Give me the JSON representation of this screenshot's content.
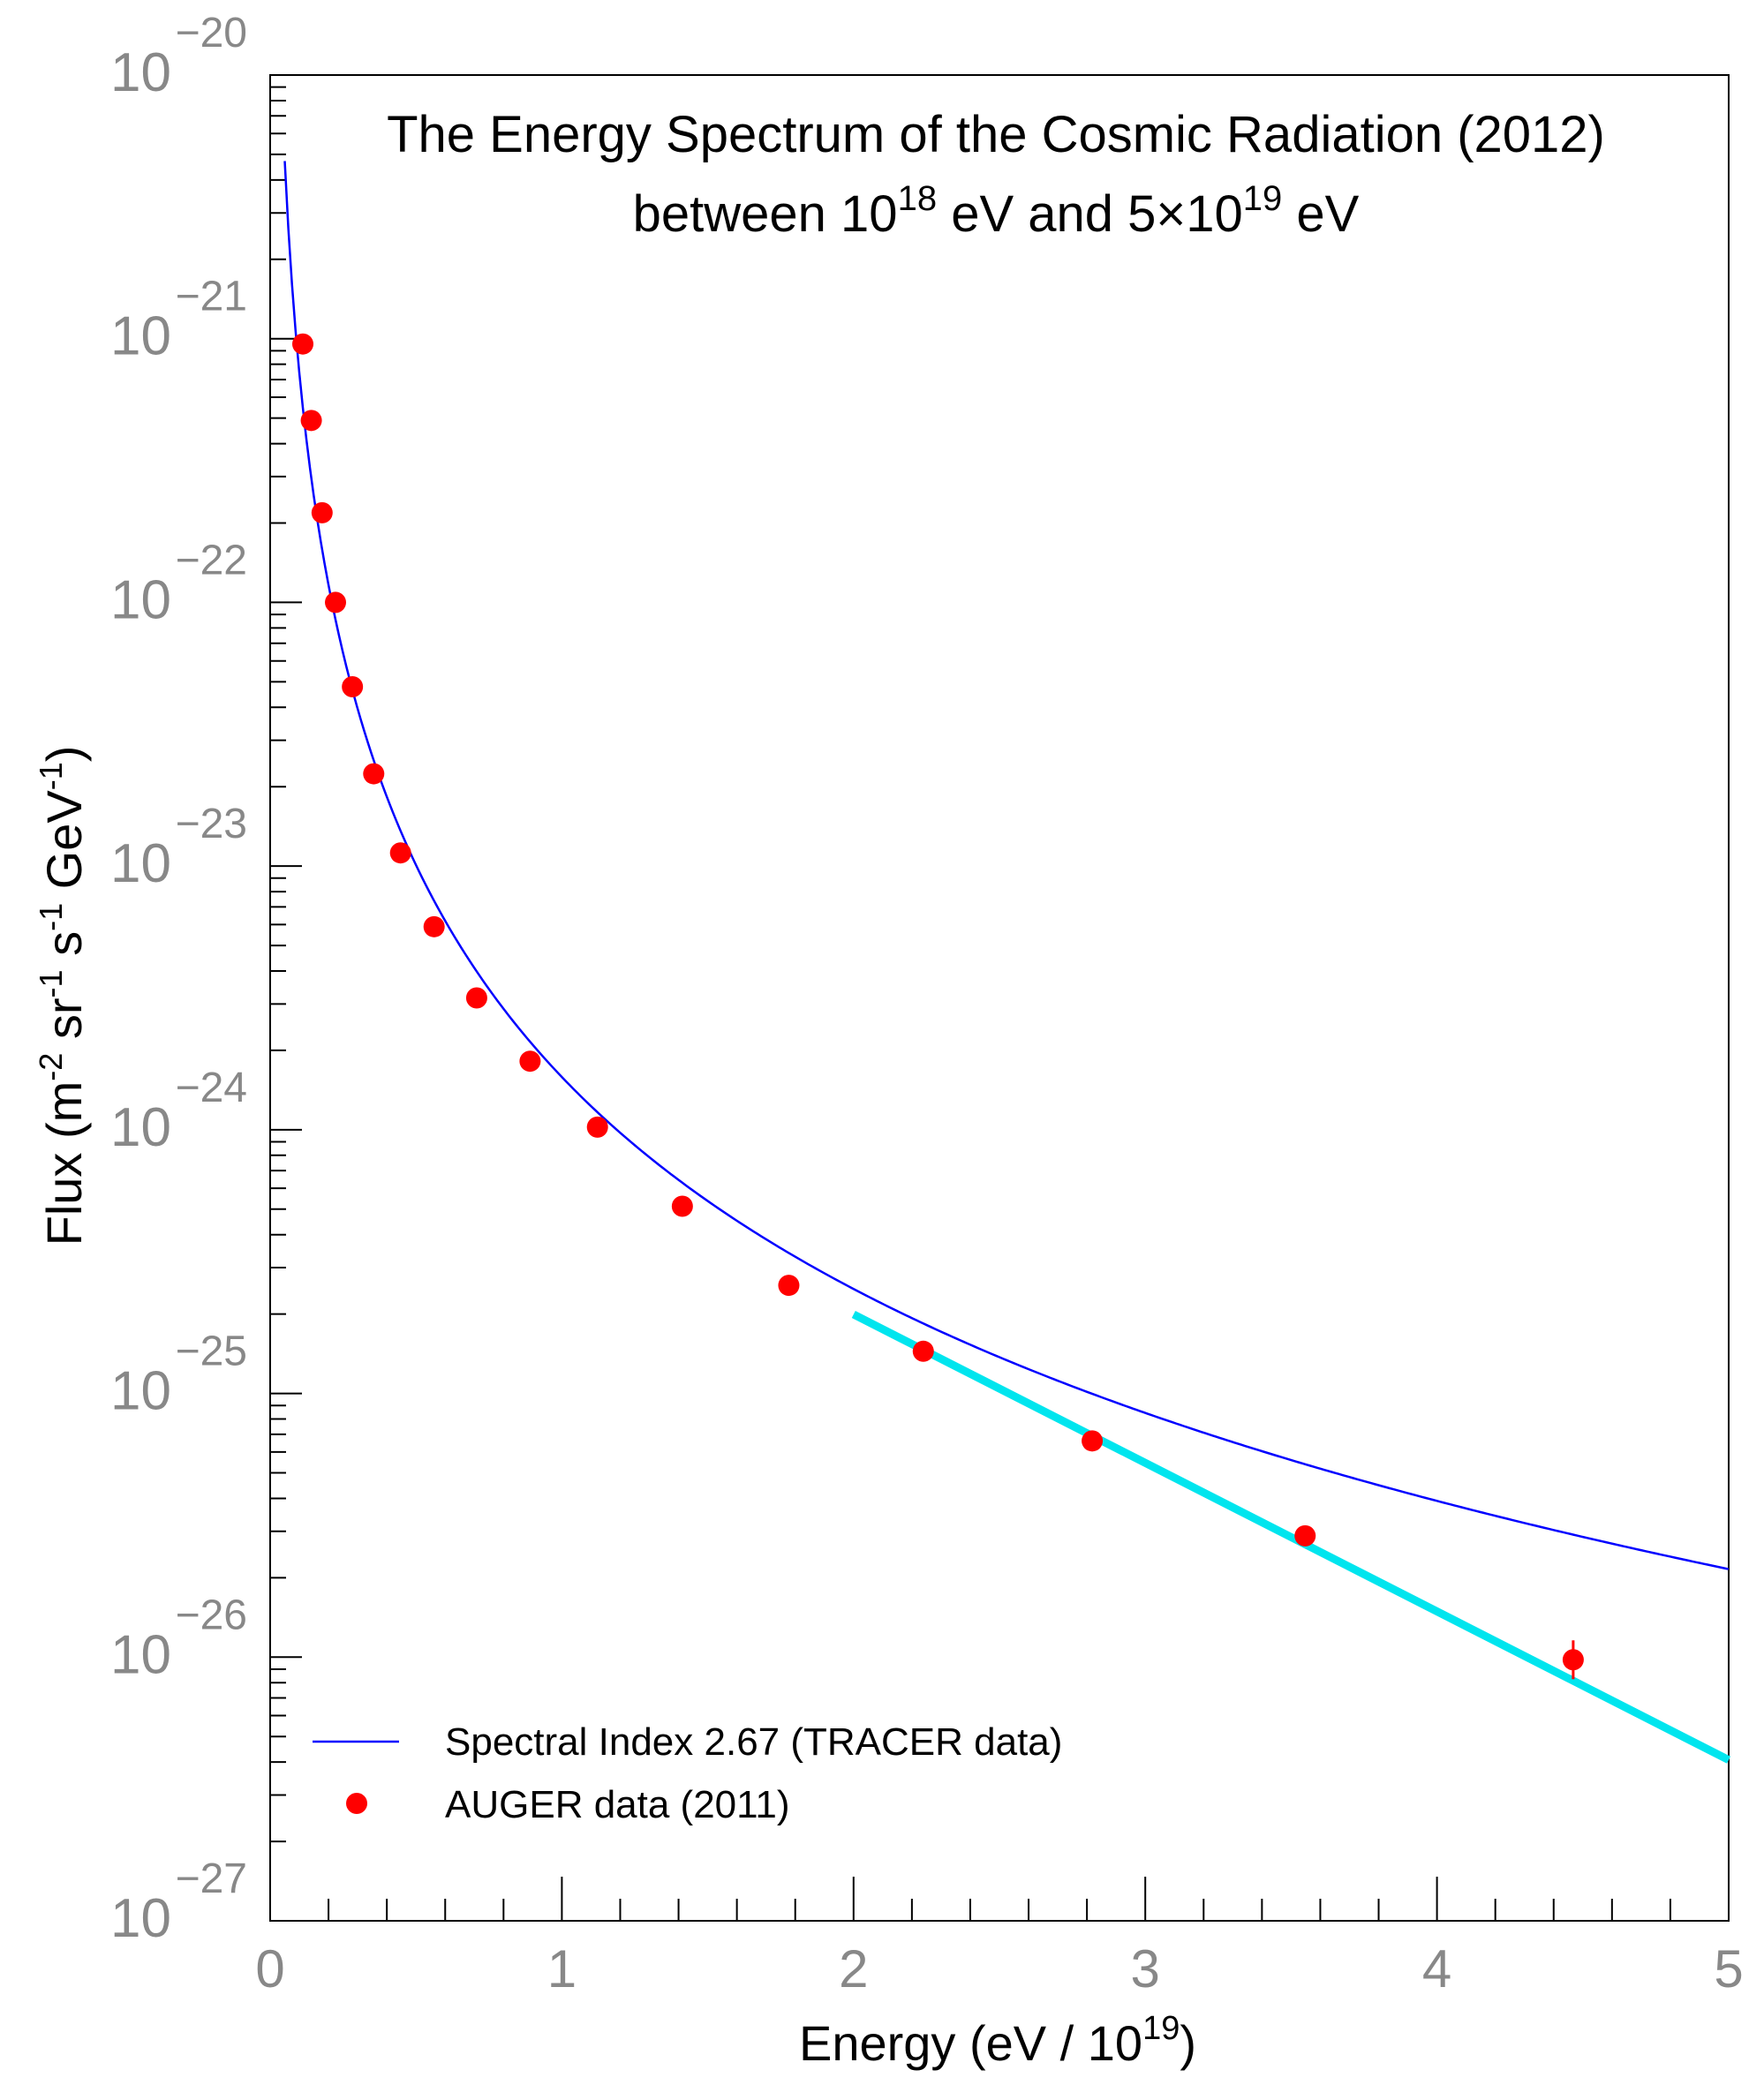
{
  "chart_data": {
    "type": "scatter",
    "title_line1": "The Energy Spectrum of the Cosmic Radiation (2012)",
    "title_line2_a": "between 10",
    "title_line2_sup1": "18",
    "title_line2_b": " eV and 5×10",
    "title_line2_sup2": "19",
    "title_line2_c": " eV",
    "xlabel_main": "Energy (eV / 10",
    "xlabel_sup": "19",
    "xlabel_end": ")",
    "ylabel_parts": [
      {
        "t": "Flux (m",
        "s": false
      },
      {
        "t": "-2",
        "s": true
      },
      {
        "t": " sr",
        "s": false
      },
      {
        "t": "-1",
        "s": true
      },
      {
        "t": " s",
        "s": false
      },
      {
        "t": "-1",
        "s": true
      },
      {
        "t": " GeV",
        "s": false
      },
      {
        "t": "-1",
        "s": true
      },
      {
        "t": ")",
        "s": false
      }
    ],
    "xlim": [
      0,
      5
    ],
    "ylim_log10": [
      -27,
      -20
    ],
    "x_ticks": [
      {
        "value": 0,
        "label": "0"
      },
      {
        "value": 1,
        "label": "1"
      },
      {
        "value": 2,
        "label": "2"
      },
      {
        "value": 3,
        "label": "3"
      },
      {
        "value": 4,
        "label": "4"
      },
      {
        "value": 5,
        "label": "5"
      }
    ],
    "y_ticks": [
      {
        "exp": -20,
        "base": "10",
        "sup": "−20"
      },
      {
        "exp": -21,
        "base": "10",
        "sup": "−21"
      },
      {
        "exp": -22,
        "base": "10",
        "sup": "−22"
      },
      {
        "exp": -23,
        "base": "10",
        "sup": "−23"
      },
      {
        "exp": -24,
        "base": "10",
        "sup": "−24"
      },
      {
        "exp": -25,
        "base": "10",
        "sup": "−25"
      },
      {
        "exp": -26,
        "base": "10",
        "sup": "−26"
      },
      {
        "exp": -27,
        "base": "10",
        "sup": "−27"
      }
    ],
    "series": [
      {
        "name": "Spectral Index 2.67 (TRACER data)",
        "kind": "line",
        "color": "#0000ff",
        "spectral_index": 2.67,
        "x_range": [
          0.05,
          5.0
        ],
        "anchor_x": 1.0,
        "anchor_log10_flux": -23.8
      },
      {
        "name": "fit above 2×10^19 eV",
        "kind": "line",
        "color": "#00e5ee",
        "in_legend": false,
        "x": [
          2.0,
          5.0
        ],
        "log10_flux": [
          -24.7,
          -26.39
        ]
      },
      {
        "name": "AUGER data (2011)",
        "kind": "scatter",
        "color": "#ff0000",
        "x": [
          0.112,
          0.141,
          0.178,
          0.224,
          0.282,
          0.355,
          0.447,
          0.562,
          0.708,
          0.891,
          1.122,
          1.413,
          1.778,
          2.239,
          2.818,
          3.548,
          4.467
        ],
        "log10_flux": [
          -21.02,
          -21.31,
          -21.66,
          -22.0,
          -22.32,
          -22.65,
          -22.95,
          -23.23,
          -23.5,
          -23.74,
          -23.99,
          -24.29,
          -24.59,
          -24.84,
          -25.18,
          -25.54,
          -26.01
        ]
      }
    ],
    "legend": {
      "position": "bottom-left",
      "entries": [
        {
          "label": "Spectral Index 2.67 (TRACER data)",
          "symbol": "line",
          "color": "#0000ff"
        },
        {
          "label": "AUGER data (2011)",
          "symbol": "marker",
          "color": "#ff0000"
        }
      ]
    }
  }
}
